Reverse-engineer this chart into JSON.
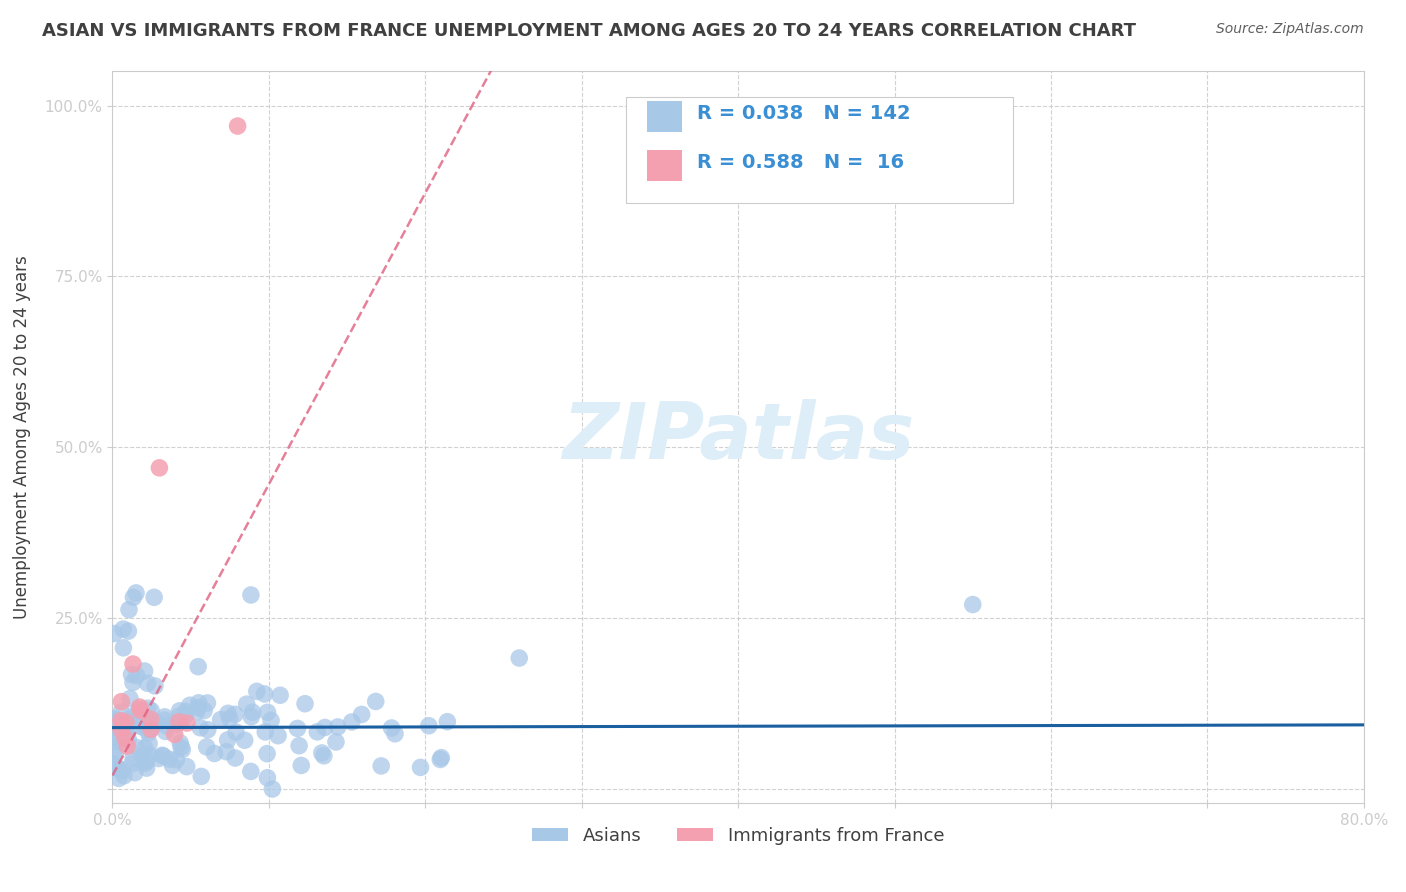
{
  "title": "ASIAN VS IMMIGRANTS FROM FRANCE UNEMPLOYMENT AMONG AGES 20 TO 24 YEARS CORRELATION CHART",
  "source_text": "Source: ZipAtlas.com",
  "ylabel": "Unemployment Among Ages 20 to 24 years",
  "xlabel": "",
  "xlim": [
    0.0,
    0.8
  ],
  "ylim": [
    -0.02,
    1.05
  ],
  "xticks": [
    0.0,
    0.1,
    0.2,
    0.3,
    0.4,
    0.5,
    0.6,
    0.7,
    0.8
  ],
  "xticklabels": [
    "0.0%",
    "",
    "",
    "",
    "",
    "",
    "",
    "",
    "80.0%"
  ],
  "ytick_positions": [
    0.0,
    0.25,
    0.5,
    0.75,
    1.0
  ],
  "yticklabels": [
    "",
    "25.0%",
    "50.0%",
    "75.0%",
    "100.0%"
  ],
  "asian_R": 0.038,
  "asian_N": 142,
  "france_R": 0.588,
  "france_N": 16,
  "asian_color": "#a8c8e8",
  "france_color": "#f4a0b0",
  "asian_line_color": "#1a5fa0",
  "france_line_color": "#e06080",
  "legend_text_color": "#3a8fd4",
  "watermark_color": "#ddeef8",
  "background_color": "#ffffff",
  "title_color": "#404040",
  "title_fontsize": 13,
  "source_fontsize": 10,
  "grid_color": "#cccccc",
  "grid_style": "--",
  "seed": 42
}
